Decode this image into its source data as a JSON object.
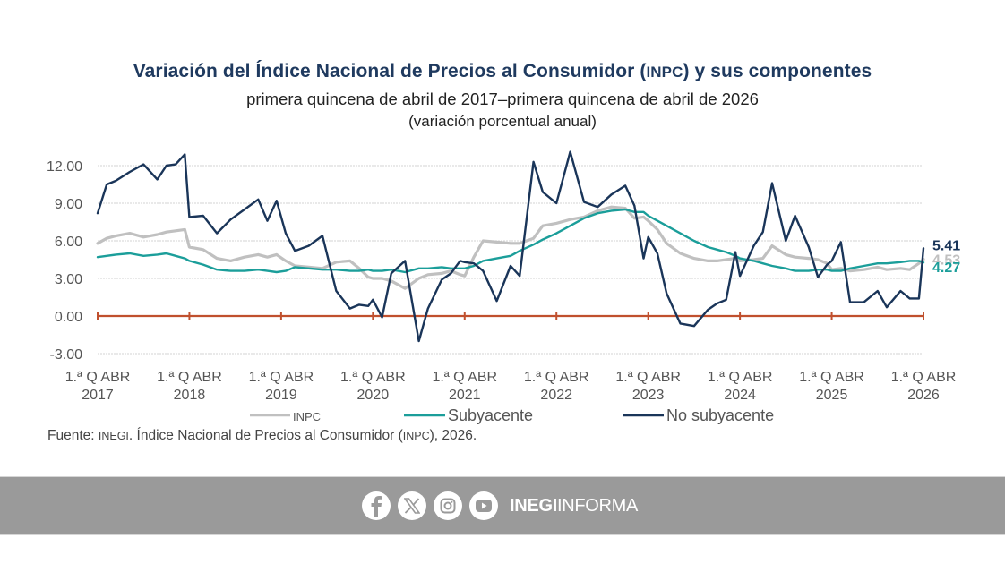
{
  "header": {
    "title_part1": "Variación del Índice Nacional de Precios al Consumidor (",
    "title_abbr": "INPC",
    "title_part2": ") y sus componentes",
    "subtitle": "primera quincena de abril de 2017–primera quincena de abril de 2026",
    "unit": "(variación porcentual anual)"
  },
  "source": {
    "prefix": "Fuente: ",
    "org": "INEGI",
    "mid": ". Índice Nacional de Precios al Consumidor (",
    "abbr": "INPC",
    "suffix": "), 2026."
  },
  "footer": {
    "social_icons": [
      "facebook-icon",
      "x-icon",
      "instagram-icon",
      "youtube-icon"
    ],
    "brand_bold": "INEGI",
    "brand_light": "INFORMA",
    "background": "#9a9a9a"
  },
  "chart_data": {
    "type": "line",
    "title": "Variación del Índice Nacional de Precios al Consumidor (INPC) y sus componentes",
    "subtitle": "primera quincena de abril de 2017–primera quincena de abril de 2026",
    "ylabel": "(variación porcentual anual)",
    "xlabel": "",
    "ylim": [
      -3,
      12
    ],
    "yticks": [
      12,
      9,
      6,
      3,
      0,
      -3
    ],
    "ytick_labels": [
      "12.00",
      "9.00",
      "6.00",
      "3.00",
      "0.00",
      "-3.00"
    ],
    "xlim": [
      2017.0,
      2026.0
    ],
    "xticks": [
      {
        "line1": "1.ª Q ABR",
        "line2": "2017"
      },
      {
        "line1": "1.ª Q ABR",
        "line2": "2018"
      },
      {
        "line1": "1.ª Q ABR",
        "line2": "2019"
      },
      {
        "line1": "1.ª Q ABR",
        "line2": "2020"
      },
      {
        "line1": "1.ª Q ABR",
        "line2": "2021"
      },
      {
        "line1": "1.ª Q ABR",
        "line2": "2022"
      },
      {
        "line1": "1.ª Q ABR",
        "line2": "2023"
      },
      {
        "line1": "1.ª Q ABR",
        "line2": "2024"
      },
      {
        "line1": "1.ª Q ABR",
        "line2": "2025"
      },
      {
        "line1": "1.ª Q ABR",
        "line2": "2026"
      }
    ],
    "grid": true,
    "zero_line_color": "#c0502e",
    "legend_position": "bottom",
    "x": [
      2017.0,
      2017.1,
      2017.2,
      2017.35,
      2017.5,
      2017.65,
      2017.75,
      2017.85,
      2017.95,
      2018.0,
      2018.15,
      2018.3,
      2018.45,
      2018.6,
      2018.75,
      2018.85,
      2018.95,
      2019.05,
      2019.15,
      2019.3,
      2019.45,
      2019.6,
      2019.75,
      2019.85,
      2019.95,
      2020.0,
      2020.1,
      2020.2,
      2020.35,
      2020.5,
      2020.6,
      2020.75,
      2020.85,
      2020.95,
      2021.0,
      2021.1,
      2021.2,
      2021.35,
      2021.5,
      2021.6,
      2021.75,
      2021.85,
      2022.0,
      2022.15,
      2022.3,
      2022.45,
      2022.6,
      2022.75,
      2022.85,
      2022.95,
      2023.0,
      2023.1,
      2023.2,
      2023.35,
      2023.5,
      2023.65,
      2023.75,
      2023.85,
      2023.95,
      2024.0,
      2024.15,
      2024.25,
      2024.35,
      2024.5,
      2024.6,
      2024.75,
      2024.85,
      2024.95,
      2025.0,
      2025.1,
      2025.2,
      2025.35,
      2025.5,
      2025.6,
      2025.75,
      2025.85,
      2025.95,
      2026.0
    ],
    "series": [
      {
        "name": "INPC",
        "color": "#c0c0c0",
        "last_label": "4.53",
        "values": [
          5.8,
          6.2,
          6.4,
          6.6,
          6.3,
          6.5,
          6.7,
          6.8,
          6.9,
          5.5,
          5.3,
          4.6,
          4.4,
          4.7,
          4.9,
          4.7,
          4.9,
          4.4,
          4.0,
          3.9,
          3.8,
          4.3,
          4.4,
          3.8,
          3.1,
          3.0,
          3.0,
          2.8,
          2.2,
          3.0,
          3.3,
          3.4,
          3.6,
          3.3,
          3.2,
          4.7,
          6.0,
          5.9,
          5.8,
          5.8,
          6.2,
          7.2,
          7.4,
          7.7,
          7.9,
          8.4,
          8.7,
          8.6,
          7.8,
          7.9,
          7.6,
          6.9,
          5.8,
          5.0,
          4.6,
          4.4,
          4.4,
          4.5,
          4.6,
          4.4,
          4.5,
          4.6,
          5.6,
          4.9,
          4.7,
          4.6,
          4.5,
          4.2,
          3.7,
          3.8,
          3.6,
          3.7,
          3.9,
          3.7,
          3.8,
          3.7,
          4.2,
          4.53
        ]
      },
      {
        "name": "Subyacente",
        "color": "#1b9e9a",
        "last_label": "4.27",
        "values": [
          4.7,
          4.8,
          4.9,
          5.0,
          4.8,
          4.9,
          5.0,
          4.8,
          4.6,
          4.4,
          4.1,
          3.7,
          3.6,
          3.6,
          3.7,
          3.6,
          3.5,
          3.6,
          3.9,
          3.8,
          3.7,
          3.7,
          3.6,
          3.6,
          3.7,
          3.6,
          3.6,
          3.7,
          3.5,
          3.8,
          3.8,
          3.9,
          3.8,
          3.8,
          3.8,
          4.0,
          4.4,
          4.6,
          4.8,
          5.2,
          5.7,
          6.1,
          6.6,
          7.2,
          7.8,
          8.2,
          8.4,
          8.5,
          8.3,
          8.3,
          8.0,
          7.6,
          7.2,
          6.6,
          6.0,
          5.5,
          5.3,
          5.1,
          4.8,
          4.6,
          4.4,
          4.2,
          4.0,
          3.8,
          3.6,
          3.6,
          3.7,
          3.7,
          3.6,
          3.6,
          3.8,
          4.0,
          4.2,
          4.2,
          4.3,
          4.4,
          4.4,
          4.27
        ]
      },
      {
        "name": "No subyacente",
        "color": "#1a3559",
        "last_label": "5.41",
        "values": [
          8.2,
          10.5,
          10.8,
          11.5,
          12.1,
          10.9,
          12.0,
          12.1,
          12.9,
          7.9,
          8.0,
          6.6,
          7.7,
          8.5,
          9.3,
          7.6,
          9.2,
          6.6,
          5.2,
          5.6,
          6.4,
          2.0,
          0.6,
          0.9,
          0.8,
          1.3,
          -0.1,
          3.4,
          4.4,
          -2.0,
          0.6,
          2.9,
          3.4,
          4.4,
          4.3,
          4.2,
          3.6,
          1.2,
          4.0,
          3.2,
          12.3,
          9.9,
          9.0,
          13.1,
          9.1,
          8.7,
          9.7,
          10.4,
          8.8,
          4.6,
          6.3,
          5.0,
          1.8,
          -0.6,
          -0.8,
          0.5,
          1.0,
          1.3,
          5.1,
          3.2,
          5.6,
          6.7,
          10.6,
          6.0,
          8.0,
          5.5,
          3.1,
          4.1,
          4.4,
          5.9,
          1.1,
          1.1,
          2.0,
          0.7,
          2.0,
          1.4,
          1.4,
          5.41
        ]
      }
    ]
  }
}
